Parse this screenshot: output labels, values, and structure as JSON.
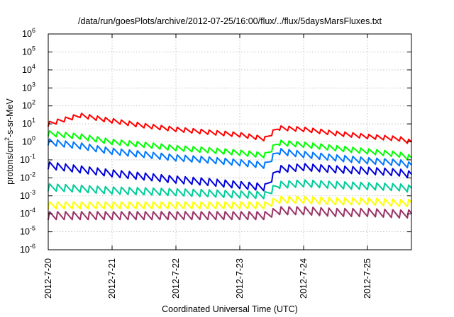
{
  "chart_data": {
    "type": "line",
    "title": "/data/run/goesPlots/archive/2012-07-25/16:00/flux/../flux/5daysMarsFluxes.txt",
    "xlabel": "Coordinated Universal Time (UTC)",
    "ylabel_parts": {
      "base": "protons/cm",
      "sup": "2",
      "rest": "-s-sr-MeV"
    },
    "y_scale": "log",
    "ylim": [
      1e-06,
      1000000.0
    ],
    "y_ticks": [
      {
        "base": "10",
        "exp": "-6"
      },
      {
        "base": "10",
        "exp": "-5"
      },
      {
        "base": "10",
        "exp": "-4"
      },
      {
        "base": "10",
        "exp": "-3"
      },
      {
        "base": "10",
        "exp": "-2"
      },
      {
        "base": "10",
        "exp": "-1"
      },
      {
        "base": "10",
        "exp": "0"
      },
      {
        "base": "10",
        "exp": "1"
      },
      {
        "base": "10",
        "exp": "2"
      },
      {
        "base": "10",
        "exp": "3"
      },
      {
        "base": "10",
        "exp": "4"
      },
      {
        "base": "10",
        "exp": "5"
      },
      {
        "base": "10",
        "exp": "6"
      }
    ],
    "xlim": [
      "2012-07-20",
      "2012-07-25 16:00"
    ],
    "x_ticks": [
      "2012-7-20",
      "2012-7-21",
      "2012-7-22",
      "2012-7-23",
      "2012-7-24",
      "2012-7-25"
    ],
    "grid": true,
    "series": [
      {
        "color": "#ff0000",
        "x": [
          0,
          0.5,
          1,
          1.5,
          2,
          2.5,
          3,
          3.4,
          3.6,
          4,
          4.5,
          5,
          5.5,
          5.67
        ],
        "y": [
          10,
          30,
          15,
          8,
          5,
          3.5,
          2.5,
          1.5,
          6,
          5,
          3,
          2,
          1.5,
          1
        ]
      },
      {
        "color": "#00ff00",
        "x": [
          0,
          0.5,
          1,
          1.5,
          2,
          2.5,
          3,
          3.4,
          3.6,
          4,
          4.5,
          5,
          5.5,
          5.67
        ],
        "y": [
          3,
          2,
          1,
          0.7,
          0.45,
          0.35,
          0.25,
          0.18,
          0.9,
          0.7,
          0.45,
          0.3,
          0.2,
          0.13
        ]
      },
      {
        "color": "#0077ff",
        "x": [
          0,
          0.5,
          1,
          1.5,
          2,
          2.5,
          3,
          3.4,
          3.6,
          4,
          4.5,
          5,
          5.5,
          5.67
        ],
        "y": [
          1,
          0.6,
          0.3,
          0.2,
          0.13,
          0.1,
          0.07,
          0.05,
          0.3,
          0.2,
          0.13,
          0.09,
          0.07,
          0.05
        ]
      },
      {
        "color": "#0000dd",
        "x": [
          0,
          0.5,
          1,
          1.5,
          2,
          2.5,
          3,
          3.4,
          3.6,
          4,
          4.5,
          5,
          5.5,
          5.67
        ],
        "y": [
          0.05,
          0.03,
          0.018,
          0.012,
          0.008,
          0.006,
          0.004,
          0.003,
          0.03,
          0.04,
          0.03,
          0.025,
          0.02,
          0.015
        ]
      },
      {
        "color": "#00cc99",
        "x": [
          0,
          0.5,
          1,
          1.5,
          2,
          2.5,
          3,
          3.4,
          3.6,
          4,
          4.5,
          5,
          5.5,
          5.67
        ],
        "y": [
          0.003,
          0.0025,
          0.002,
          0.0018,
          0.0016,
          0.0014,
          0.0012,
          0.0011,
          0.004,
          0.005,
          0.004,
          0.0035,
          0.003,
          0.0025
        ]
      },
      {
        "color": "#ffff00",
        "x": [
          0,
          0.5,
          1,
          1.5,
          2,
          2.5,
          3,
          3.4,
          3.6,
          4,
          4.5,
          5,
          5.5,
          5.67
        ],
        "y": [
          0.0003,
          0.0003,
          0.0003,
          0.0003,
          0.0003,
          0.0003,
          0.0003,
          0.0003,
          0.0006,
          0.0006,
          0.0005,
          0.0005,
          0.0004,
          0.0004
        ]
      },
      {
        "color": "#993366",
        "x": [
          0,
          0.5,
          1,
          1.5,
          2,
          2.5,
          3,
          3.4,
          3.6,
          4,
          4.5,
          5,
          5.5,
          5.67
        ],
        "y": [
          8e-05,
          8e-05,
          8e-05,
          8e-05,
          8e-05,
          8e-05,
          8e-05,
          8e-05,
          0.00015,
          0.00015,
          0.00012,
          0.00012,
          0.0001,
          0.0001
        ]
      }
    ]
  }
}
